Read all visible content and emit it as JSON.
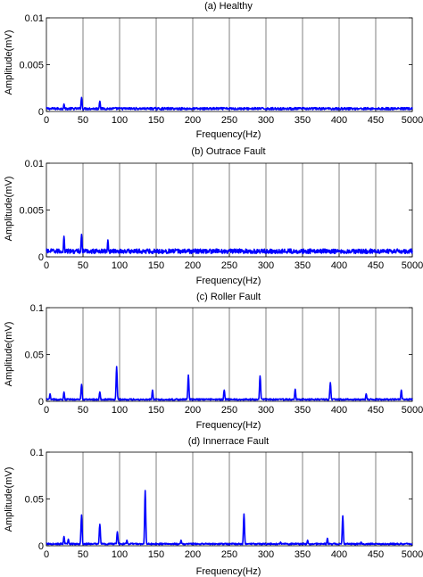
{
  "chart_data": [
    {
      "type": "line",
      "title": "(a) Healthy",
      "xlabel": "Frequency(Hz)",
      "ylabel": "Amplitude(mV)",
      "xlim": [
        0,
        500
      ],
      "ylim": [
        0,
        0.01
      ],
      "xticks": [
        "0",
        "50",
        "100",
        "150",
        "200",
        "250",
        "300",
        "350",
        "400",
        "450",
        "5000"
      ],
      "yticks": [
        "0",
        "0.005",
        "0.01"
      ],
      "grid": "vertical",
      "series_color": "#0000ff",
      "baseline": 0.0003,
      "peaks": [
        {
          "x": 24,
          "y": 0.0008
        },
        {
          "x": 48,
          "y": 0.0015
        },
        {
          "x": 73,
          "y": 0.0011
        }
      ]
    },
    {
      "type": "line",
      "title": "(b) Outrace Fault",
      "xlabel": "Frequency(Hz)",
      "ylabel": "Amplitude(mV)",
      "xlim": [
        0,
        500
      ],
      "ylim": [
        0,
        0.01
      ],
      "xticks": [
        "0",
        "50",
        "100",
        "150",
        "200",
        "250",
        "300",
        "350",
        "400",
        "450",
        "5000"
      ],
      "yticks": [
        "0",
        "0.005",
        "0.01"
      ],
      "grid": "vertical",
      "series_color": "#0000ff",
      "baseline": 0.0006,
      "peaks": [
        {
          "x": 24,
          "y": 0.0022
        },
        {
          "x": 48,
          "y": 0.0024
        },
        {
          "x": 84,
          "y": 0.0018
        }
      ]
    },
    {
      "type": "line",
      "title": "(c) Roller Fault",
      "xlabel": "Frequency(Hz)",
      "ylabel": "Amplitude(mV)",
      "xlim": [
        0,
        500
      ],
      "ylim": [
        0,
        0.1
      ],
      "xticks": [
        "0",
        "50",
        "100",
        "150",
        "200",
        "250",
        "300",
        "350",
        "400",
        "450",
        "5000"
      ],
      "yticks": [
        "0",
        "0.05",
        "0.1"
      ],
      "grid": "vertical",
      "series_color": "#0000ff",
      "baseline": 0.002,
      "peaks": [
        {
          "x": 5,
          "y": 0.008
        },
        {
          "x": 24,
          "y": 0.01
        },
        {
          "x": 48,
          "y": 0.018
        },
        {
          "x": 73,
          "y": 0.01
        },
        {
          "x": 96,
          "y": 0.037
        },
        {
          "x": 145,
          "y": 0.012
        },
        {
          "x": 194,
          "y": 0.028
        },
        {
          "x": 243,
          "y": 0.012
        },
        {
          "x": 292,
          "y": 0.027
        },
        {
          "x": 340,
          "y": 0.013
        },
        {
          "x": 388,
          "y": 0.02
        },
        {
          "x": 437,
          "y": 0.008
        },
        {
          "x": 485,
          "y": 0.012
        }
      ]
    },
    {
      "type": "line",
      "title": "(d) Innerrace Fault",
      "xlabel": "Frequency(Hz)",
      "ylabel": "Amplitude(mV)",
      "xlim": [
        0,
        500
      ],
      "ylim": [
        0,
        0.1
      ],
      "xticks": [
        "0",
        "50",
        "100",
        "150",
        "200",
        "250",
        "300",
        "350",
        "400",
        "450",
        "5000"
      ],
      "yticks": [
        "0",
        "0.05",
        "0.1"
      ],
      "grid": "vertical",
      "series_color": "#0000ff",
      "baseline": 0.002,
      "peaks": [
        {
          "x": 24,
          "y": 0.01
        },
        {
          "x": 30,
          "y": 0.007
        },
        {
          "x": 48,
          "y": 0.033
        },
        {
          "x": 73,
          "y": 0.023
        },
        {
          "x": 97,
          "y": 0.015
        },
        {
          "x": 110,
          "y": 0.006
        },
        {
          "x": 135,
          "y": 0.059
        },
        {
          "x": 184,
          "y": 0.006
        },
        {
          "x": 270,
          "y": 0.034
        },
        {
          "x": 320,
          "y": 0.004
        },
        {
          "x": 357,
          "y": 0.006
        },
        {
          "x": 384,
          "y": 0.008
        },
        {
          "x": 405,
          "y": 0.032
        },
        {
          "x": 430,
          "y": 0.004
        }
      ]
    }
  ]
}
